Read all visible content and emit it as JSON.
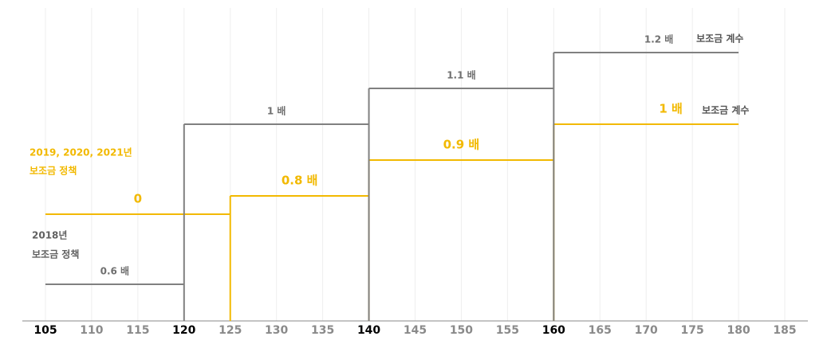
{
  "chart_data": {
    "type": "step",
    "xlim": [
      102.5,
      187.5
    ],
    "xticks": [
      105,
      110,
      115,
      120,
      125,
      130,
      135,
      140,
      145,
      150,
      155,
      160,
      165,
      170,
      175,
      180,
      185
    ],
    "bold_xticks": [
      105,
      120,
      140,
      160
    ],
    "grid": true,
    "series": [
      {
        "name": [
          "2018년",
          "보조금 정책"
        ],
        "color": "#808080",
        "end_label": "보조금 계수",
        "segments": [
          {
            "from": 105,
            "to": 120,
            "label": "0.6 배"
          },
          {
            "from": 120,
            "to": 140,
            "label": "1 배"
          },
          {
            "from": 140,
            "to": 160,
            "label": "1.1 배"
          },
          {
            "from": 160,
            "to": 180,
            "label": "1.2 배"
          }
        ]
      },
      {
        "name": [
          "2019, 2020, 2021년",
          "보조금 정책"
        ],
        "color": "#f2b900",
        "end_label": "보조금 계수",
        "segments": [
          {
            "from": 105,
            "to": 125,
            "label": "0"
          },
          {
            "from": 125,
            "to": 140,
            "label": "0.8 배"
          },
          {
            "from": 140,
            "to": 160,
            "label": "0.9 배"
          },
          {
            "from": 160,
            "to": 180,
            "label": "1 배"
          }
        ]
      }
    ]
  }
}
